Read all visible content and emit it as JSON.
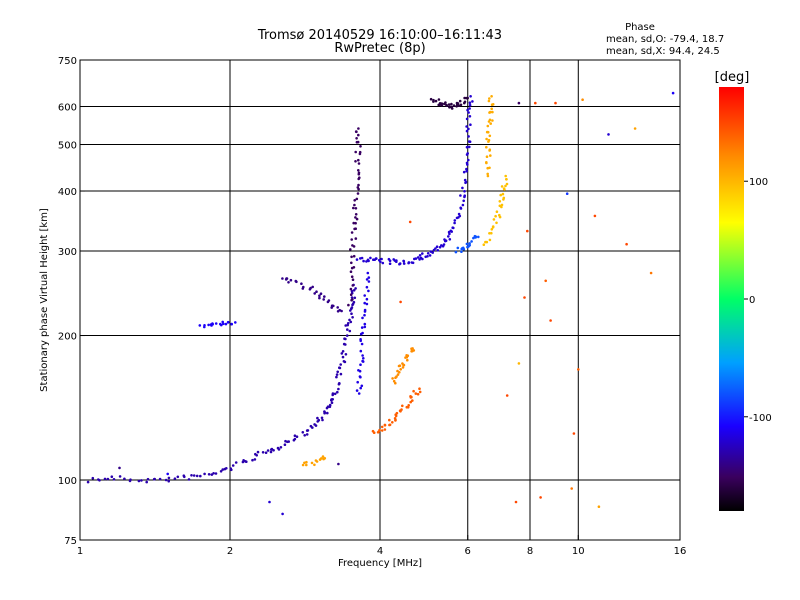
{
  "chart_data": {
    "type": "scatter",
    "title": "Tromsø 20140529 16:10:00–16:11:43",
    "subtitle": "RwPretec (8p)",
    "xlabel": "Frequency [MHz]",
    "ylabel": "Stationary phase Virtual Height [km]",
    "x_scale": "log",
    "y_scale": "log",
    "xlim": [
      1,
      16
    ],
    "ylim": [
      75,
      750
    ],
    "x_ticks": [
      1,
      2,
      4,
      6,
      8,
      10,
      16
    ],
    "x_tick_labels": [
      "1",
      "2",
      "4",
      "6",
      "8",
      "10",
      "16"
    ],
    "y_ticks": [
      75,
      100,
      200,
      300,
      400,
      500,
      600,
      750
    ],
    "y_tick_labels": [
      "75",
      "100",
      "200",
      "300",
      "400",
      "500",
      "600",
      "750"
    ],
    "grid": true,
    "legend_position": "top-right",
    "stats": {
      "heading": "Phase",
      "lines": [
        "mean, sd,O:  -79.4, 18.7",
        "mean, sd,X:  94.4, 24.5"
      ]
    },
    "colorbar": {
      "label": "[deg]",
      "range": [
        -180,
        180
      ],
      "ticks": [
        100,
        0,
        -100
      ],
      "tick_labels": [
        "100",
        "0",
        "-100"
      ]
    },
    "traces": [
      {
        "name": "",
        "phase": -130,
        "points": [
          [
            1.05,
            100
          ],
          [
            1.15,
            101
          ],
          [
            1.3,
            100
          ],
          [
            1.45,
            100
          ],
          [
            1.6,
            101
          ],
          [
            1.75,
            102
          ],
          [
            1.9,
            104
          ],
          [
            2.05,
            107
          ],
          [
            2.2,
            111
          ],
          [
            2.35,
            114
          ],
          [
            2.5,
            117
          ],
          [
            2.65,
            121
          ],
          [
            2.8,
            125
          ],
          [
            2.95,
            130
          ],
          [
            3.05,
            136
          ],
          [
            3.15,
            141
          ],
          [
            3.22,
            148
          ],
          [
            3.28,
            157
          ],
          [
            3.33,
            168
          ],
          [
            3.38,
            180
          ],
          [
            3.42,
            195
          ],
          [
            3.46,
            210
          ],
          [
            3.5,
            225
          ],
          [
            3.52,
            240
          ],
          [
            3.54,
            255
          ]
        ]
      },
      {
        "name": "",
        "phase": -150,
        "points": [
          [
            3.48,
            230
          ],
          [
            3.5,
            260
          ],
          [
            3.52,
            290
          ],
          [
            3.54,
            320
          ],
          [
            3.56,
            350
          ],
          [
            3.58,
            380
          ],
          [
            3.6,
            420
          ],
          [
            3.6,
            460
          ],
          [
            3.62,
            500
          ],
          [
            3.62,
            540
          ]
        ]
      },
      {
        "name": "",
        "phase": -120,
        "points": [
          [
            3.6,
            290
          ],
          [
            3.8,
            288
          ],
          [
            4.0,
            286
          ],
          [
            4.2,
            285
          ],
          [
            4.4,
            284
          ],
          [
            4.6,
            286
          ],
          [
            4.8,
            290
          ],
          [
            5.0,
            296
          ],
          [
            5.2,
            303
          ],
          [
            5.4,
            312
          ],
          [
            5.55,
            325
          ],
          [
            5.7,
            345
          ],
          [
            5.8,
            370
          ],
          [
            5.88,
            400
          ],
          [
            5.94,
            440
          ],
          [
            5.98,
            480
          ],
          [
            6.02,
            530
          ],
          [
            6.05,
            580
          ],
          [
            6.08,
            630
          ]
        ]
      },
      {
        "name": "",
        "phase": -140,
        "points": [
          [
            2.55,
            265
          ],
          [
            2.7,
            258
          ],
          [
            2.9,
            250
          ],
          [
            3.05,
            240
          ],
          [
            3.2,
            232
          ],
          [
            3.35,
            225
          ]
        ]
      },
      {
        "name": "",
        "phase": -115,
        "points": [
          [
            3.62,
            150
          ],
          [
            3.65,
            165
          ],
          [
            3.67,
            180
          ],
          [
            3.7,
            200
          ],
          [
            3.72,
            220
          ],
          [
            3.75,
            245
          ],
          [
            3.78,
            270
          ]
        ]
      },
      {
        "name": "",
        "phase": -160,
        "points": [
          [
            5.1,
            620
          ],
          [
            5.25,
            610
          ],
          [
            5.4,
            605
          ],
          [
            5.55,
            600
          ],
          [
            5.7,
            602
          ],
          [
            5.85,
            610
          ],
          [
            6.0,
            625
          ]
        ]
      },
      {
        "name": "",
        "phase": 140,
        "points": [
          [
            3.9,
            125
          ],
          [
            4.05,
            128
          ],
          [
            4.2,
            132
          ],
          [
            4.35,
            137
          ],
          [
            4.5,
            142
          ],
          [
            4.65,
            148
          ],
          [
            4.8,
            155
          ]
        ]
      },
      {
        "name": "",
        "phase": 120,
        "points": [
          [
            4.25,
            160
          ],
          [
            4.35,
            167
          ],
          [
            4.45,
            174
          ],
          [
            4.55,
            181
          ],
          [
            4.65,
            188
          ]
        ]
      },
      {
        "name": "",
        "phase": 95,
        "points": [
          [
            6.5,
            310
          ],
          [
            6.7,
            330
          ],
          [
            6.9,
            355
          ],
          [
            7.0,
            380
          ],
          [
            7.1,
            405
          ],
          [
            7.15,
            430
          ]
        ]
      },
      {
        "name": "",
        "phase": 105,
        "points": [
          [
            6.55,
            430
          ],
          [
            6.6,
            470
          ],
          [
            6.62,
            510
          ],
          [
            6.65,
            550
          ],
          [
            6.68,
            590
          ],
          [
            6.7,
            630
          ]
        ]
      },
      {
        "name": "",
        "phase": -80,
        "points": [
          [
            5.7,
            300
          ],
          [
            5.9,
            306
          ],
          [
            6.1,
            313
          ],
          [
            6.3,
            321
          ]
        ]
      },
      {
        "name": "",
        "phase": 110,
        "points": [
          [
            2.8,
            108
          ],
          [
            2.95,
            109
          ],
          [
            3.1,
            111
          ]
        ]
      },
      {
        "name": "",
        "phase": -110,
        "points": [
          [
            1.75,
            210
          ],
          [
            1.85,
            211
          ],
          [
            1.95,
            212
          ],
          [
            2.05,
            213
          ]
        ]
      }
    ],
    "scatter_points": [
      {
        "x": 7.6,
        "y": 610,
        "phase": -150
      },
      {
        "x": 8.2,
        "y": 610,
        "phase": 150
      },
      {
        "x": 9.0,
        "y": 610,
        "phase": 150
      },
      {
        "x": 10.2,
        "y": 620,
        "phase": 120
      },
      {
        "x": 11.5,
        "y": 525,
        "phase": -120
      },
      {
        "x": 15.5,
        "y": 640,
        "phase": -110
      },
      {
        "x": 13.0,
        "y": 540,
        "phase": 110
      },
      {
        "x": 9.5,
        "y": 395,
        "phase": -90
      },
      {
        "x": 10.8,
        "y": 355,
        "phase": 150
      },
      {
        "x": 12.5,
        "y": 310,
        "phase": 150
      },
      {
        "x": 14.0,
        "y": 270,
        "phase": 130
      },
      {
        "x": 8.6,
        "y": 260,
        "phase": 140
      },
      {
        "x": 7.8,
        "y": 240,
        "phase": 150
      },
      {
        "x": 8.8,
        "y": 215,
        "phase": 150
      },
      {
        "x": 10.0,
        "y": 170,
        "phase": 140
      },
      {
        "x": 9.8,
        "y": 125,
        "phase": 150
      },
      {
        "x": 8.4,
        "y": 92,
        "phase": 150
      },
      {
        "x": 9.7,
        "y": 96,
        "phase": 130
      },
      {
        "x": 11.0,
        "y": 88,
        "phase": 110
      },
      {
        "x": 7.5,
        "y": 90,
        "phase": 150
      },
      {
        "x": 7.2,
        "y": 150,
        "phase": 150
      },
      {
        "x": 7.6,
        "y": 175,
        "phase": 100
      },
      {
        "x": 7.9,
        "y": 330,
        "phase": 150
      },
      {
        "x": 3.3,
        "y": 108,
        "phase": -140
      },
      {
        "x": 2.4,
        "y": 90,
        "phase": -120
      },
      {
        "x": 2.55,
        "y": 85,
        "phase": -120
      },
      {
        "x": 1.2,
        "y": 106,
        "phase": -140
      },
      {
        "x": 1.5,
        "y": 103,
        "phase": -110
      },
      {
        "x": 4.6,
        "y": 345,
        "phase": 150
      },
      {
        "x": 4.4,
        "y": 235,
        "phase": 150
      }
    ]
  }
}
